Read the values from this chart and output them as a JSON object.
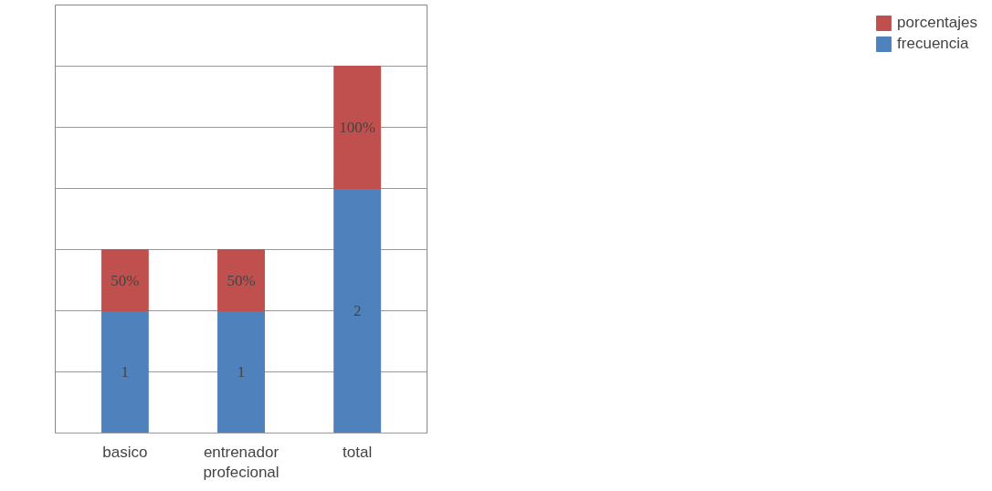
{
  "chart_data": {
    "type": "bar",
    "stacked": true,
    "categories": [
      "basico",
      "entrenador profecional",
      "total"
    ],
    "series": [
      {
        "name": "frecuencia",
        "color": "#4f81bd",
        "values": [
          1,
          1,
          2
        ],
        "value_labels": [
          "1",
          "1",
          "2"
        ]
      },
      {
        "name": "porcentajes",
        "color": "#c0504d",
        "values": [
          0.5,
          0.5,
          1
        ],
        "value_labels": [
          "50%",
          "50%",
          "100%"
        ]
      }
    ],
    "ylim": [
      0,
      3.5
    ],
    "yticks": [
      {
        "value": 0,
        "label": null
      },
      {
        "value": 0.5,
        "label": null
      },
      {
        "value": 1,
        "label": null
      },
      {
        "value": 1.5,
        "label": null
      },
      {
        "value": 2,
        "label": null
      },
      {
        "value": 2.5,
        "label": null
      },
      {
        "value": 3,
        "label": null
      },
      {
        "value": 3.5,
        "label": null
      }
    ],
    "tick_labels": "x",
    "grid": "y",
    "legend": "right"
  }
}
